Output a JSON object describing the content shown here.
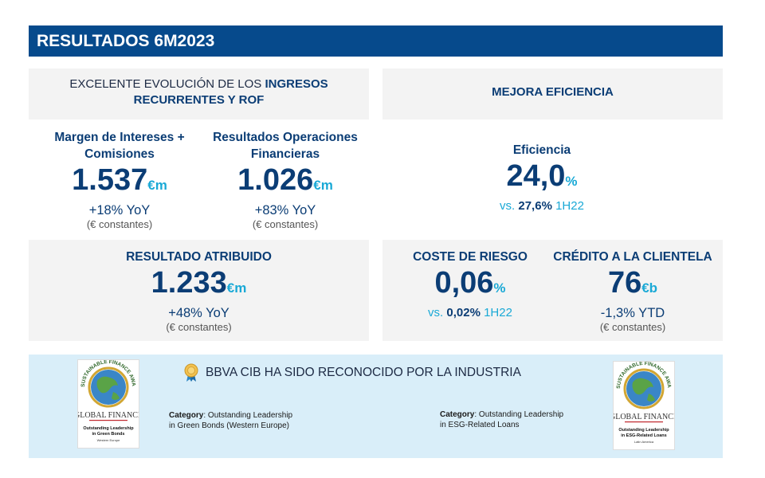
{
  "title": "RESULTADOS 6M2023",
  "left_panel": {
    "heading_prefix": "EXCELENTE EVOLUCIÓN DE LOS ",
    "heading_bold": "INGRESOS",
    "heading_line2": "RECURRENTES Y ROF",
    "metric1": {
      "label_line1": "Margen de Intereses +",
      "label_line2": "Comisiones",
      "value": "1.537",
      "unit": "€m",
      "change": "+18% YoY",
      "note": "(€ constantes)"
    },
    "metric2": {
      "label_line1": "Resultados Operaciones",
      "label_line2": "Financieras",
      "value": "1.026",
      "unit": "€m",
      "change": "+83% YoY",
      "note": "(€ constantes)"
    }
  },
  "right_panel": {
    "heading": "MEJORA EFICIENCIA",
    "metric": {
      "label": "Eficiencia",
      "value": "24,0",
      "unit": "%",
      "vs_prefix": "vs. ",
      "vs_value": "27,6%",
      "vs_suffix": " 1H22"
    }
  },
  "bottom_left": {
    "label": "RESULTADO ATRIBUIDO",
    "value": "1.233",
    "unit": "€m",
    "change": "+48% YoY",
    "note": "(€ constantes)"
  },
  "bottom_right": {
    "risk": {
      "label": "COSTE DE RIESGO",
      "value": "0,06",
      "unit": "%",
      "vs_prefix": "vs. ",
      "vs_value": "0,02%",
      "vs_suffix": " 1H22"
    },
    "credit": {
      "label": "CRÉDITO A LA CLIENTELA",
      "value": "76",
      "unit": "€b",
      "change": "-1,3% YTD",
      "note": "(€ constantes)"
    }
  },
  "awards": {
    "heading": "BBVA CIB HA SIDO RECONOCIDO POR LA INDUSTRIA",
    "category_label": "Category",
    "award1": {
      "text_line1": ": Outstanding Leadership",
      "text_line2": "in Green Bonds (Western Europe)",
      "logo_top": "SUSTAINABLE FINANCE AWARDS 2023",
      "logo_brand": "GLOBAL FINANCE",
      "logo_caption1": "Outstanding Leadership",
      "logo_caption2": "in Green Bonds",
      "logo_caption3": "Western Europe"
    },
    "award2": {
      "text_line1": ": Outstanding Leadership",
      "text_line2": "in ESG-Related Loans",
      "logo_top": "SUSTAINABLE FINANCE AWARDS 2023",
      "logo_brand": "GLOBAL FINANCE",
      "logo_caption1": "Outstanding Leadership",
      "logo_caption2": "in ESG-Related Loans",
      "logo_caption3": "Latin America"
    }
  },
  "colors": {
    "title_bg": "#064a8c",
    "navy": "#0b3d75",
    "teal": "#1aa9d6",
    "panel_grey": "#f3f3f3",
    "award_band": "#d9eef9"
  }
}
